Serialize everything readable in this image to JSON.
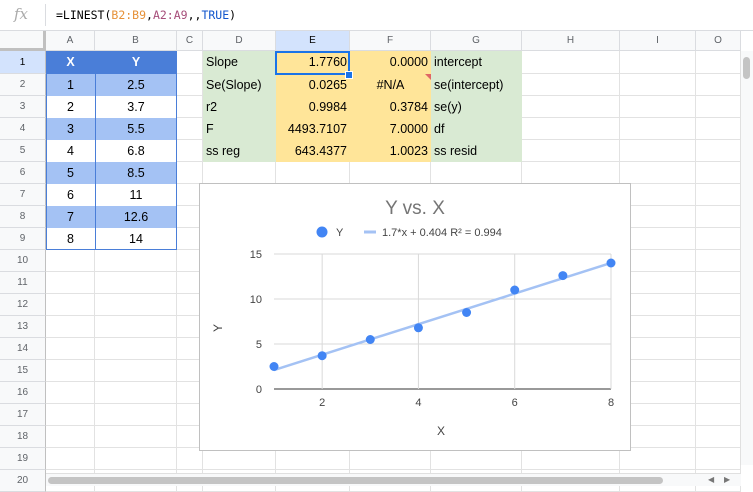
{
  "formula_bar": {
    "fx_label": "fx",
    "prefix": "=LINEST(",
    "ref1": "B2:B9",
    "sep1": ",",
    "ref2": "A2:A9",
    "sep2": ",,",
    "kw": "TRUE",
    "suffix": ")"
  },
  "columns": [
    "A",
    "B",
    "C",
    "D",
    "E",
    "F",
    "G",
    "H",
    "I",
    "O"
  ],
  "rows": [
    "1",
    "2",
    "3",
    "4",
    "5",
    "6",
    "7",
    "8",
    "9",
    "10",
    "11",
    "12",
    "13",
    "14",
    "15",
    "16",
    "17",
    "18",
    "19",
    "20"
  ],
  "xy_table": {
    "headers": [
      "X",
      "Y"
    ],
    "x": [
      "1",
      "2",
      "3",
      "4",
      "5",
      "6",
      "7",
      "8"
    ],
    "y": [
      "2.5",
      "3.7",
      "5.5",
      "6.8",
      "8.5",
      "11",
      "12.6",
      "14"
    ]
  },
  "linest_table": {
    "left_labels": [
      "Slope",
      "Se(Slope)",
      "r2",
      "F",
      "ss reg"
    ],
    "col_e": [
      "1.7760",
      "0.0265",
      "0.9984",
      "4493.7107",
      "643.4377"
    ],
    "col_f": [
      "0.0000",
      "#N/A",
      "0.3784",
      "7.0000",
      "1.0023"
    ],
    "right_labels": [
      "intercept",
      "se(intercept)",
      "se(y)",
      "df",
      "ss resid"
    ]
  },
  "chart_data": {
    "type": "scatter",
    "title": "Y vs. X",
    "xlabel": "X",
    "ylabel": "Y",
    "x": [
      1,
      2,
      3,
      4,
      5,
      6,
      7,
      8
    ],
    "y": [
      2.5,
      3.7,
      5.5,
      6.8,
      8.5,
      11,
      12.6,
      14
    ],
    "xlim": [
      1,
      8
    ],
    "ylim": [
      0,
      15
    ],
    "xticks": [
      2,
      4,
      6,
      8
    ],
    "yticks": [
      0,
      5,
      10,
      15
    ],
    "legend_position": "top",
    "legend": [
      {
        "name": "Y",
        "label": "Y"
      },
      {
        "name": "trendline",
        "label": "1.7*x + 0.404 R² = 0.994"
      }
    ],
    "trendline": {
      "slope": 1.7,
      "intercept": 0.404
    },
    "grid": true,
    "colors": {
      "points": "#4285f4",
      "trendline": "#a4c2f4"
    }
  }
}
